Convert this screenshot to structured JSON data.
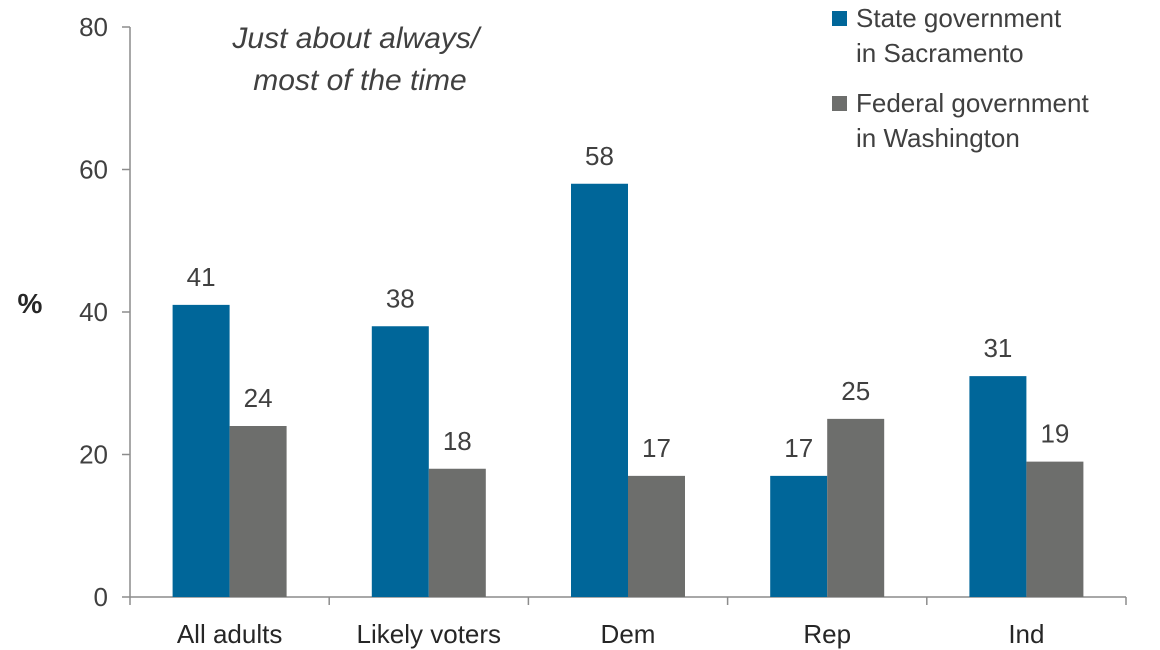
{
  "chart_data": {
    "type": "bar",
    "annotation": [
      "Just about always/",
      "most of the time"
    ],
    "ylabel": "%",
    "xlabel": "",
    "ylim": [
      0,
      80
    ],
    "yticks": [
      0,
      20,
      40,
      60,
      80
    ],
    "categories": [
      "All adults",
      "Likely voters",
      "Dem",
      "Rep",
      "Ind"
    ],
    "series": [
      {
        "name": [
          "State government",
          "in Sacramento"
        ],
        "color": "#006699",
        "values": [
          41,
          38,
          58,
          17,
          31
        ]
      },
      {
        "name": [
          "Federal government",
          "in Washington"
        ],
        "color": "#6D6E6C",
        "values": [
          24,
          18,
          17,
          25,
          19
        ]
      }
    ],
    "legend_position": "top-right",
    "grid": false
  }
}
